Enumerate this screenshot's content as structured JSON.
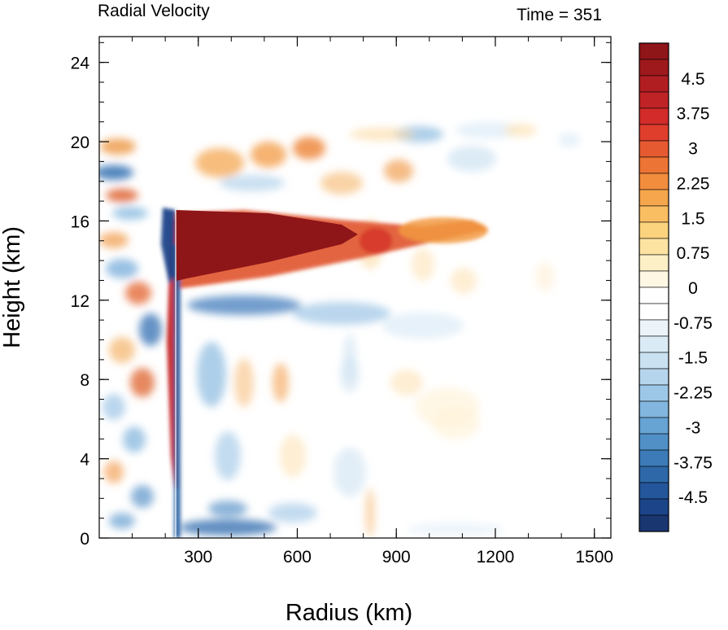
{
  "chart_data": {
    "type": "heatmap",
    "title": "Radial Velocity",
    "title_right": "Time = 351",
    "xlabel": "Radius (km)",
    "ylabel": "Height (km)",
    "xlim": [
      0,
      1550
    ],
    "ylim": [
      0,
      25.3
    ],
    "x_ticks": [
      300,
      600,
      900,
      1200,
      1500
    ],
    "x_tick_labels": [
      "300",
      "600",
      "900",
      "1200",
      "1500"
    ],
    "x_minor_step": 100,
    "y_ticks": [
      0,
      4,
      8,
      12,
      16,
      20,
      24
    ],
    "y_tick_labels": [
      "0",
      "4",
      "8",
      "12",
      "16",
      "20",
      "24"
    ],
    "y_minor_step": 1,
    "grid": false,
    "colorbar": {
      "position": "right",
      "min": -5.25,
      "max": 5.25,
      "step": 0.375,
      "labels": [
        "4.5",
        "3.75",
        "3",
        "2.25",
        "1.5",
        "0.75",
        "0",
        "-0.75",
        "-1.5",
        "-2.25",
        "-3",
        "-3.75",
        "-4.5"
      ],
      "label_values": [
        4.5,
        3.75,
        3,
        2.25,
        1.5,
        0.75,
        0,
        -0.75,
        -1.5,
        -2.25,
        -3,
        -3.75,
        -4.5
      ],
      "colors_top_to_bottom": [
        "#8e1518",
        "#9e191c",
        "#b01e22",
        "#c02326",
        "#d22b2a",
        "#df3e2d",
        "#e55a31",
        "#ec7434",
        "#f28d3e",
        "#f6a64d",
        "#f9bd62",
        "#fbd27e",
        "#fde3a2",
        "#fdefc6",
        "#fef7e4",
        "#ffffff",
        "#ffffff",
        "#ecf4fa",
        "#dbebf6",
        "#c9e1f1",
        "#b5d5ec",
        "#9dc7e6",
        "#82b6de",
        "#67a3d3",
        "#5090c7",
        "#3d7bb8",
        "#2e68a8",
        "#23569a",
        "#1c4589",
        "#1a3671"
      ]
    },
    "features": [
      {
        "name": "upper outflow jet",
        "r_start": 230,
        "r_end": 1100,
        "z_center": 14.5,
        "value_max": 5.5
      },
      {
        "name": "secondary outflow maximum",
        "r": 800,
        "z": 15.2,
        "value": 3.5
      },
      {
        "name": "inflow below outflow",
        "r_start": 230,
        "r_end": 600,
        "z": 11.8,
        "value": -2.5
      },
      {
        "name": "boundary layer inflow",
        "r_start": 230,
        "r_end": 450,
        "z": 0.3,
        "value": -4.5
      },
      {
        "name": "eyewall outflow band",
        "r_start": 185,
        "r_end": 225,
        "z_start": 2,
        "z_end": 16,
        "value": 4.5
      },
      {
        "name": "eyewall inflow streak",
        "r_start": 195,
        "r_end": 240,
        "z_start": 12,
        "z_end": 16.5,
        "value": -5
      }
    ]
  }
}
